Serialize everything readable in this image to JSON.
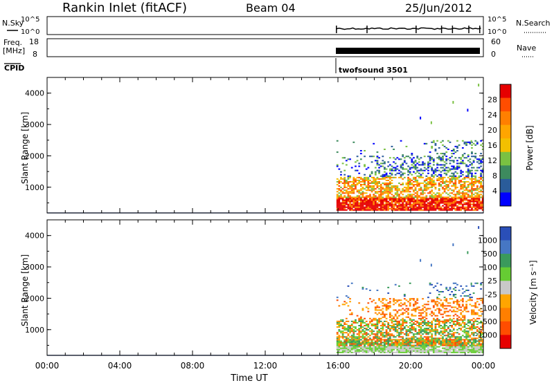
{
  "header": {
    "title": "Rankin Inlet (fitACF)",
    "beam": "Beam 04",
    "date": "25/Jun/2012"
  },
  "strip_labels": {
    "nsky": "N.Sky",
    "nsky_ticks": [
      "10^5",
      "10^0"
    ],
    "nsearch": "N.Search",
    "nsearch_ticks": [
      "10^5",
      "10^0"
    ],
    "freq_top": "Freq.",
    "freq_unit": "[MHz]",
    "freq_ticks": [
      "18",
      "8"
    ],
    "nave": "Nave",
    "nave_ticks": [
      "60",
      "0"
    ],
    "cpid": "CPID",
    "cpid_value": "twofsound 3501"
  },
  "chart_data": [
    {
      "type": "heatmap",
      "name": "power",
      "ylabel": "Slant Range [km]",
      "y_ticks": [
        "4000",
        "3000",
        "2000",
        "1000"
      ],
      "colorbar_label": "Power [dB]",
      "colorbar_ticks": [
        "28",
        "24",
        "20",
        "16",
        "12",
        "8",
        "4"
      ],
      "colorbar_colors": [
        "#e60000",
        "#ff4d00",
        "#ff7f00",
        "#ffa500",
        "#f3c000",
        "#7ac142",
        "#3d8a5e",
        "#2a5c9a",
        "#0000ff"
      ],
      "x_range": [
        "00:00",
        "00:00"
      ],
      "y_range": [
        180,
        4500
      ],
      "data_start": "15:55"
    },
    {
      "type": "heatmap",
      "name": "velocity",
      "ylabel": "Slant Range [km]",
      "y_ticks": [
        "4000",
        "3000",
        "2000",
        "1000"
      ],
      "colorbar_label": "Velocity [m s⁻¹]",
      "colorbar_ticks": [
        "1000",
        "500",
        "100",
        "25",
        "-25",
        "-100",
        "-500",
        "-1000"
      ],
      "colorbar_colors": [
        "#2a4fb8",
        "#4677c4",
        "#3a9a5c",
        "#66cc33",
        "#c8c8c8",
        "#ffa500",
        "#ff7f00",
        "#ff4d00",
        "#e60000"
      ],
      "x_range": [
        "00:00",
        "00:00"
      ],
      "y_range": [
        180,
        4500
      ],
      "data_start": "15:55"
    }
  ],
  "x_axis": {
    "ticks": [
      "00:00",
      "04:00",
      "08:00",
      "12:00",
      "16:00",
      "20:00",
      "00:00"
    ],
    "label": "Time UT"
  }
}
